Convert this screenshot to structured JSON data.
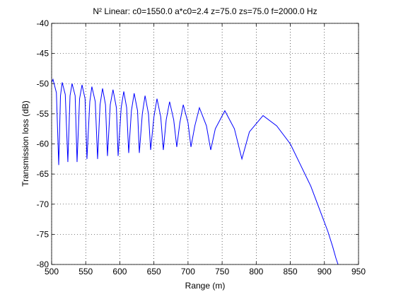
{
  "chart_data": {
    "type": "line",
    "title": "N² Linear: c0=1550.0 a*c0=2.4 z=75.0 zs=75.0 f=2000.0 Hz",
    "xlabel": "Range (m)",
    "ylabel": "Transmission loss (dB)",
    "xlim": [
      500,
      950
    ],
    "ylim": [
      -80,
      -40
    ],
    "xticks": [
      500,
      550,
      600,
      650,
      700,
      750,
      800,
      850,
      900,
      950
    ],
    "yticks": [
      -80,
      -75,
      -70,
      -65,
      -60,
      -55,
      -50,
      -45,
      -40
    ],
    "grid": true,
    "series": [
      {
        "color": "#0000ff",
        "x": [
          500,
          502,
          507,
          510.4,
          513,
          515.5,
          520,
          523.8,
          527,
          530,
          534.5,
          537.3,
          541,
          544.6,
          549,
          551.8,
          556,
          559,
          564,
          567.4,
          571,
          574.7,
          579,
          581.9,
          586,
          590,
          595,
          597.5,
          602,
          605.8,
          610,
          613,
          617,
          621,
          626,
          628.6,
          633,
          637,
          642,
          645.2,
          650,
          654.5,
          660,
          663.8,
          668,
          673,
          679,
          683.5,
          688,
          693,
          700,
          704.3,
          710,
          716.7,
          727,
          733.3,
          740,
          754,
          768,
          779,
          790,
          810,
          830,
          850,
          865,
          880,
          895,
          905,
          912,
          917,
          920
        ],
        "values": [
          -49.8,
          -49.3,
          -51.5,
          -63.5,
          -52,
          -49.8,
          -51.8,
          -63,
          -52,
          -50,
          -52,
          -63,
          -52.5,
          -50.2,
          -52.5,
          -62.5,
          -53,
          -50.5,
          -53,
          -62.5,
          -53.5,
          -50.8,
          -53.5,
          -62,
          -53.5,
          -51,
          -54,
          -62,
          -54,
          -51.3,
          -54,
          -61.5,
          -54.5,
          -51.6,
          -54.5,
          -61.5,
          -55,
          -52,
          -55,
          -61,
          -55.5,
          -52.5,
          -55.5,
          -61,
          -56,
          -53,
          -56,
          -60.5,
          -56.5,
          -53.5,
          -56.5,
          -60.5,
          -57,
          -54,
          -57,
          -61,
          -57.5,
          -54.5,
          -57.5,
          -62.5,
          -58,
          -55.3,
          -57,
          -60,
          -63.5,
          -67,
          -71.5,
          -74.5,
          -77,
          -79,
          -80
        ]
      }
    ]
  }
}
